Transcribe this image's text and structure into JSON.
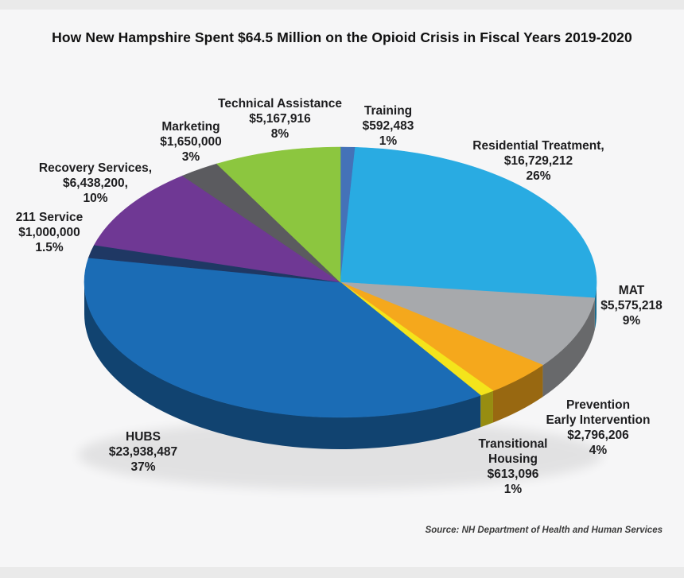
{
  "title": "How New Hampshire Spent $64.5 Million on the Opioid Crisis in Fiscal Years 2019-2020",
  "source": "Source: NH Department of Health and Human Services",
  "chart_data": {
    "type": "pie",
    "style": "3d",
    "total_spending_label": "$64.5 Million",
    "start_angle_deg_from_top": 0,
    "direction": "clockwise",
    "legend_position": "callout-labels-around-pie",
    "slices": [
      {
        "label": "Training",
        "amount": "$592,483",
        "percent": "1%",
        "value": 592483,
        "color": "#4472B8"
      },
      {
        "label": "Residential Treatment,",
        "amount": "$16,729,212",
        "percent": "26%",
        "value": 16729212,
        "color": "#29ABE2"
      },
      {
        "label": "MAT",
        "amount": "$5,575,218",
        "percent": "9%",
        "value": 5575218,
        "color": "#A7A9AC"
      },
      {
        "label": "Prevention\nEarly Intervention",
        "amount": "$2,796,206",
        "percent": "4%",
        "value": 2796206,
        "color": "#F5A81C"
      },
      {
        "label": "Transitional\nHousing",
        "amount": "$613,096",
        "percent": "1%",
        "value": 613096,
        "color": "#F4E41B"
      },
      {
        "label": "HUBS",
        "amount": "$23,938,487",
        "percent": "37%",
        "value": 23938487,
        "color": "#1B6CB5"
      },
      {
        "label": "211 Service",
        "amount": "$1,000,000",
        "percent": "1.5%",
        "value": 1000000,
        "color": "#1F3864"
      },
      {
        "label": "Recovery Services,",
        "amount": "$6,438,200,",
        "percent": "10%",
        "value": 6438200,
        "color": "#6F3894"
      },
      {
        "label": "Marketing",
        "amount": "$1,650,000",
        "percent": "3%",
        "value": 1650000,
        "color": "#5B5B5F"
      },
      {
        "label": "Technical Assistance",
        "amount": "$5,167,916",
        "percent": "8%",
        "value": 5167916,
        "color": "#8CC63F"
      }
    ]
  }
}
